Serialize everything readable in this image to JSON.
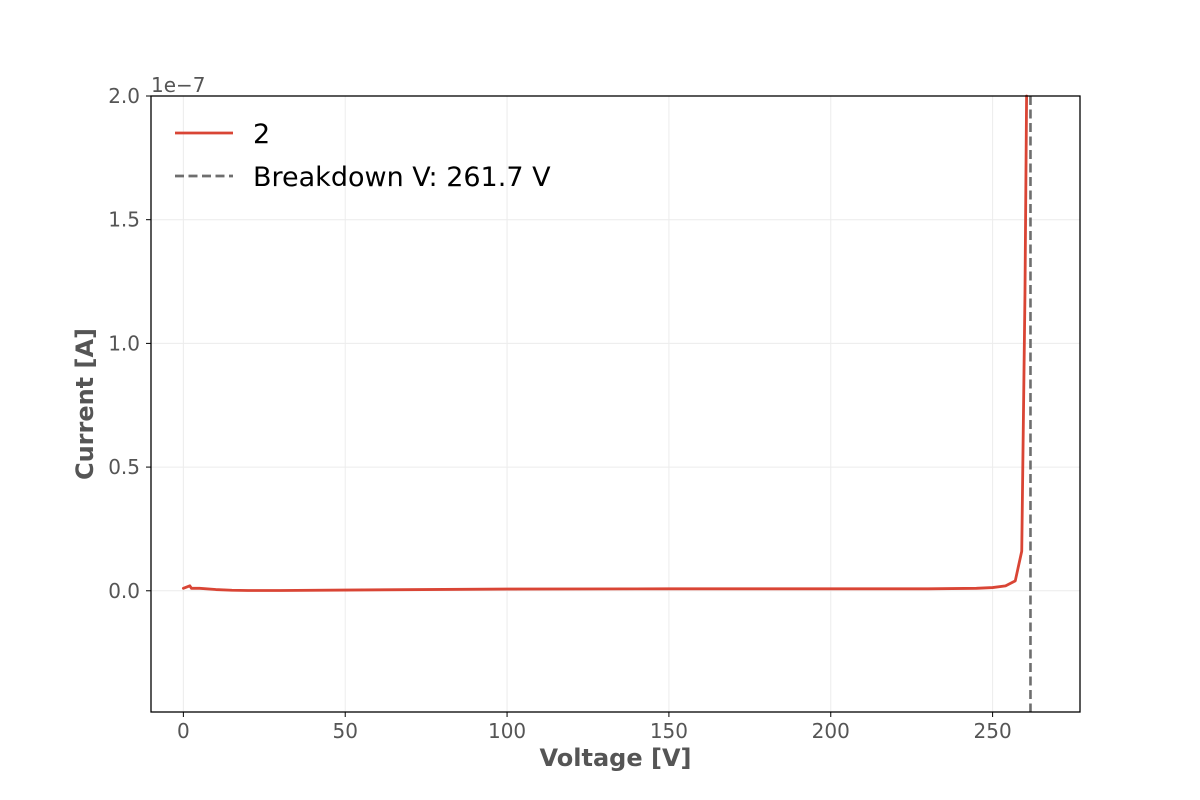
{
  "chart_data": {
    "type": "line",
    "xlabel": "Voltage [V]",
    "ylabel": "Current [A]",
    "y_offset_label": "1e−7",
    "y_scale_factor": 1e-07,
    "xlim": [
      -10,
      277
    ],
    "ylim": [
      -0.49,
      2.0
    ],
    "x_ticks": [
      0,
      50,
      100,
      150,
      200,
      250
    ],
    "x_tick_labels": [
      "0",
      "50",
      "100",
      "150",
      "200",
      "250"
    ],
    "y_ticks": [
      0.0,
      0.5,
      1.0,
      1.5,
      2.0
    ],
    "y_tick_labels": [
      "0.0",
      "0.5",
      "1.0",
      "1.5",
      "2.0"
    ],
    "grid": true,
    "legend_position": "top-left",
    "series": [
      {
        "name": "2",
        "color": "#d94535",
        "x": [
          0,
          1,
          2,
          2.5,
          5,
          10,
          15,
          20,
          30,
          50,
          100,
          150,
          200,
          230,
          245,
          250,
          254,
          257,
          259,
          260,
          260.5
        ],
        "y": [
          0.01,
          0.015,
          0.02,
          0.01,
          0.01,
          0.005,
          0.002,
          0.001,
          0.001,
          0.003,
          0.007,
          0.008,
          0.008,
          0.008,
          0.01,
          0.013,
          0.02,
          0.04,
          0.16,
          1.2,
          2.0
        ]
      }
    ],
    "reference_lines": [
      {
        "name": "Breakdown V: 261.7 V",
        "orientation": "vertical",
        "x": 261.7,
        "color": "#6e6e6e",
        "style": "dashed"
      }
    ]
  }
}
